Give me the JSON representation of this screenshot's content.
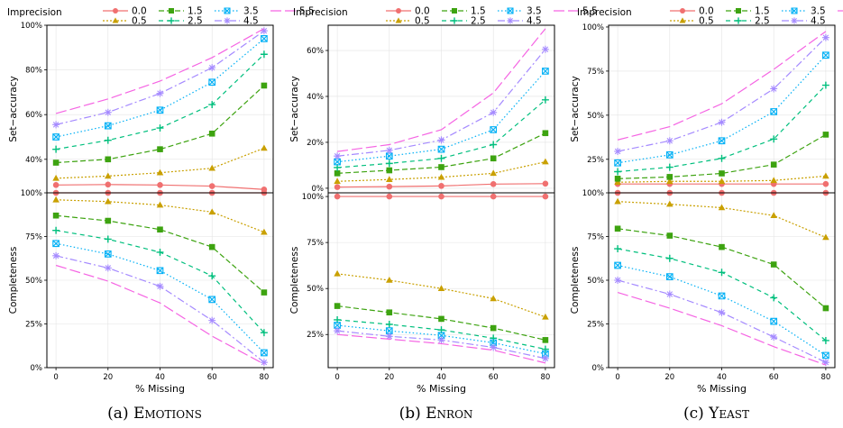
{
  "legend": {
    "title": "Imprecision",
    "entries": [
      {
        "label": "0.0",
        "color": "#F07070",
        "shape": "circle",
        "dash": ""
      },
      {
        "label": "0.5",
        "color": "#C9A000",
        "shape": "triangle",
        "dash": "2,2"
      },
      {
        "label": "1.5",
        "color": "#3DA310",
        "shape": "square",
        "dash": "6,3"
      },
      {
        "label": "2.5",
        "color": "#00BF7D",
        "shape": "plus",
        "dash": "5,4"
      },
      {
        "label": "3.5",
        "color": "#00B0F6",
        "shape": "boxcross",
        "dash": "1.5,2.5"
      },
      {
        "label": "4.5",
        "color": "#A58AFF",
        "shape": "asterisk",
        "dash": "8,3,2,3"
      },
      {
        "label": "5.5",
        "color": "#F564E3",
        "shape": "none",
        "dash": "12,4"
      }
    ]
  },
  "chart_data": [
    {
      "type": "line",
      "caption_prefix": "(a) ",
      "caption_name": "Emotions",
      "xlabel": "% Missing",
      "x": [
        0,
        20,
        40,
        60,
        80
      ],
      "panels": [
        {
          "ylabel": "Set−accuracy",
          "ylim": [
            25,
            100
          ],
          "yticks": [
            40,
            60,
            80,
            100
          ],
          "ytick_labels": [
            "40%",
            "60%",
            "80%",
            "100%"
          ],
          "series": [
            {
              "name": "0.0",
              "values": [
                28.5,
                28.7,
                28.5,
                28,
                26.5
              ]
            },
            {
              "name": "0.5",
              "values": [
                31.5,
                32.5,
                34,
                36,
                45
              ]
            },
            {
              "name": "1.5",
              "values": [
                38.5,
                40,
                44.5,
                51.5,
                73
              ]
            },
            {
              "name": "2.5",
              "values": [
                44.5,
                48.5,
                54,
                64.5,
                87
              ]
            },
            {
              "name": "3.5",
              "values": [
                50,
                55,
                62,
                74.5,
                94
              ]
            },
            {
              "name": "4.5",
              "values": [
                55.5,
                61,
                69.5,
                81,
                97.5
              ]
            },
            {
              "name": "5.5",
              "values": [
                60.5,
                67,
                75,
                85.5,
                98.5
              ]
            }
          ]
        },
        {
          "ylabel": "Completeness",
          "ylim": [
            0,
            100
          ],
          "yticks": [
            0,
            25,
            50,
            75,
            100
          ],
          "ytick_labels": [
            "0%",
            "25%",
            "50%",
            "75%",
            "100%"
          ],
          "series": [
            {
              "name": "0.0",
              "values": [
                100,
                100,
                100,
                100,
                100
              ]
            },
            {
              "name": "0.5",
              "values": [
                96,
                95,
                93,
                89,
                77.5
              ]
            },
            {
              "name": "1.5",
              "values": [
                87,
                84,
                79,
                69,
                43
              ]
            },
            {
              "name": "2.5",
              "values": [
                78.5,
                73.5,
                66,
                52.5,
                20
              ]
            },
            {
              "name": "3.5",
              "values": [
                71,
                65,
                55.5,
                39,
                8.5
              ]
            },
            {
              "name": "4.5",
              "values": [
                64,
                57,
                46.5,
                27,
                3
              ]
            },
            {
              "name": "5.5",
              "values": [
                58.5,
                49.5,
                37,
                18,
                2
              ]
            }
          ]
        }
      ]
    },
    {
      "type": "line",
      "caption_prefix": "(b) ",
      "caption_name": "Enron",
      "xlabel": "% Missing",
      "x": [
        0,
        20,
        40,
        60,
        80
      ],
      "panels": [
        {
          "ylabel": "Set−accuracy",
          "ylim": [
            -2,
            71
          ],
          "yticks": [
            0,
            20,
            40,
            60
          ],
          "ytick_labels": [
            "0%",
            "20%",
            "40%",
            "60%"
          ],
          "series": [
            {
              "name": "0.0",
              "values": [
                0.5,
                0.7,
                1,
                1.8,
                2
              ]
            },
            {
              "name": "0.5",
              "values": [
                3,
                3.8,
                4.8,
                6.5,
                11.5
              ]
            },
            {
              "name": "1.5",
              "values": [
                6.5,
                7.8,
                9.2,
                13,
                24
              ]
            },
            {
              "name": "2.5",
              "values": [
                9,
                10.8,
                13,
                19,
                38.5
              ]
            },
            {
              "name": "3.5",
              "values": [
                11.5,
                14,
                17,
                25.5,
                51
              ]
            },
            {
              "name": "4.5",
              "values": [
                14,
                16.5,
                21,
                33,
                60.5
              ]
            },
            {
              "name": "5.5",
              "values": [
                16,
                19,
                25.5,
                41.5,
                69.5
              ]
            }
          ]
        },
        {
          "ylabel": "Completeness",
          "ylim": [
            7,
            102
          ],
          "yticks": [
            25,
            50,
            75,
            100
          ],
          "ytick_labels": [
            "25%",
            "50%",
            "75%",
            "100%"
          ],
          "series": [
            {
              "name": "0.0",
              "values": [
                100,
                100,
                100,
                100,
                100
              ]
            },
            {
              "name": "0.5",
              "values": [
                58,
                54.5,
                50,
                44.5,
                34.5
              ]
            },
            {
              "name": "1.5",
              "values": [
                40.5,
                37,
                33.5,
                28.5,
                22
              ]
            },
            {
              "name": "2.5",
              "values": [
                33,
                30.5,
                27.5,
                23,
                17
              ]
            },
            {
              "name": "3.5",
              "values": [
                30,
                27,
                24.5,
                20.5,
                14.5
              ]
            },
            {
              "name": "4.5",
              "values": [
                27,
                24,
                22,
                18,
                12
              ]
            },
            {
              "name": "5.5",
              "values": [
                25,
                22.5,
                20,
                16.5,
                9.5
              ]
            }
          ]
        }
      ]
    },
    {
      "type": "line",
      "caption_prefix": "(c) ",
      "caption_name": "Yeast",
      "xlabel": "% Missing",
      "x": [
        0,
        20,
        40,
        60,
        80
      ],
      "panels": [
        {
          "ylabel": "Set−accuracy",
          "ylim": [
            6,
            101
          ],
          "yticks": [
            25,
            50,
            75,
            100
          ],
          "ytick_labels": [
            "25%",
            "50%",
            "75%",
            "100%"
          ],
          "series": [
            {
              "name": "0.0",
              "values": [
                11,
                11,
                11,
                11,
                11
              ]
            },
            {
              "name": "0.5",
              "values": [
                12,
                12.5,
                12.5,
                13,
                15.5
              ]
            },
            {
              "name": "1.5",
              "values": [
                14,
                15,
                17,
                22,
                39
              ]
            },
            {
              "name": "2.5",
              "values": [
                18,
                20.5,
                25.5,
                36.5,
                67
              ]
            },
            {
              "name": "3.5",
              "values": [
                23,
                27.5,
                35.5,
                52,
                84
              ]
            },
            {
              "name": "4.5",
              "values": [
                29.5,
                35.5,
                46,
                65,
                94
              ]
            },
            {
              "name": "5.5",
              "values": [
                36,
                43.5,
                56.5,
                76,
                97.5
              ]
            }
          ]
        },
        {
          "ylabel": "Completeness",
          "ylim": [
            0,
            100
          ],
          "yticks": [
            0,
            25,
            50,
            75,
            100
          ],
          "ytick_labels": [
            "0%",
            "25%",
            "50%",
            "75%",
            "100%"
          ],
          "series": [
            {
              "name": "0.0",
              "values": [
                100,
                100,
                100,
                100,
                100
              ]
            },
            {
              "name": "0.5",
              "values": [
                95,
                93.5,
                91.5,
                87,
                74.5
              ]
            },
            {
              "name": "1.5",
              "values": [
                79.5,
                75.5,
                69,
                59,
                34
              ]
            },
            {
              "name": "2.5",
              "values": [
                68,
                62.5,
                54.5,
                40,
                15.5
              ]
            },
            {
              "name": "3.5",
              "values": [
                58.5,
                52,
                41,
                26.5,
                7
              ]
            },
            {
              "name": "4.5",
              "values": [
                50,
                42,
                31.5,
                17.5,
                3
              ]
            },
            {
              "name": "5.5",
              "values": [
                43,
                34,
                24,
                12,
                1.5
              ]
            }
          ]
        }
      ]
    }
  ]
}
